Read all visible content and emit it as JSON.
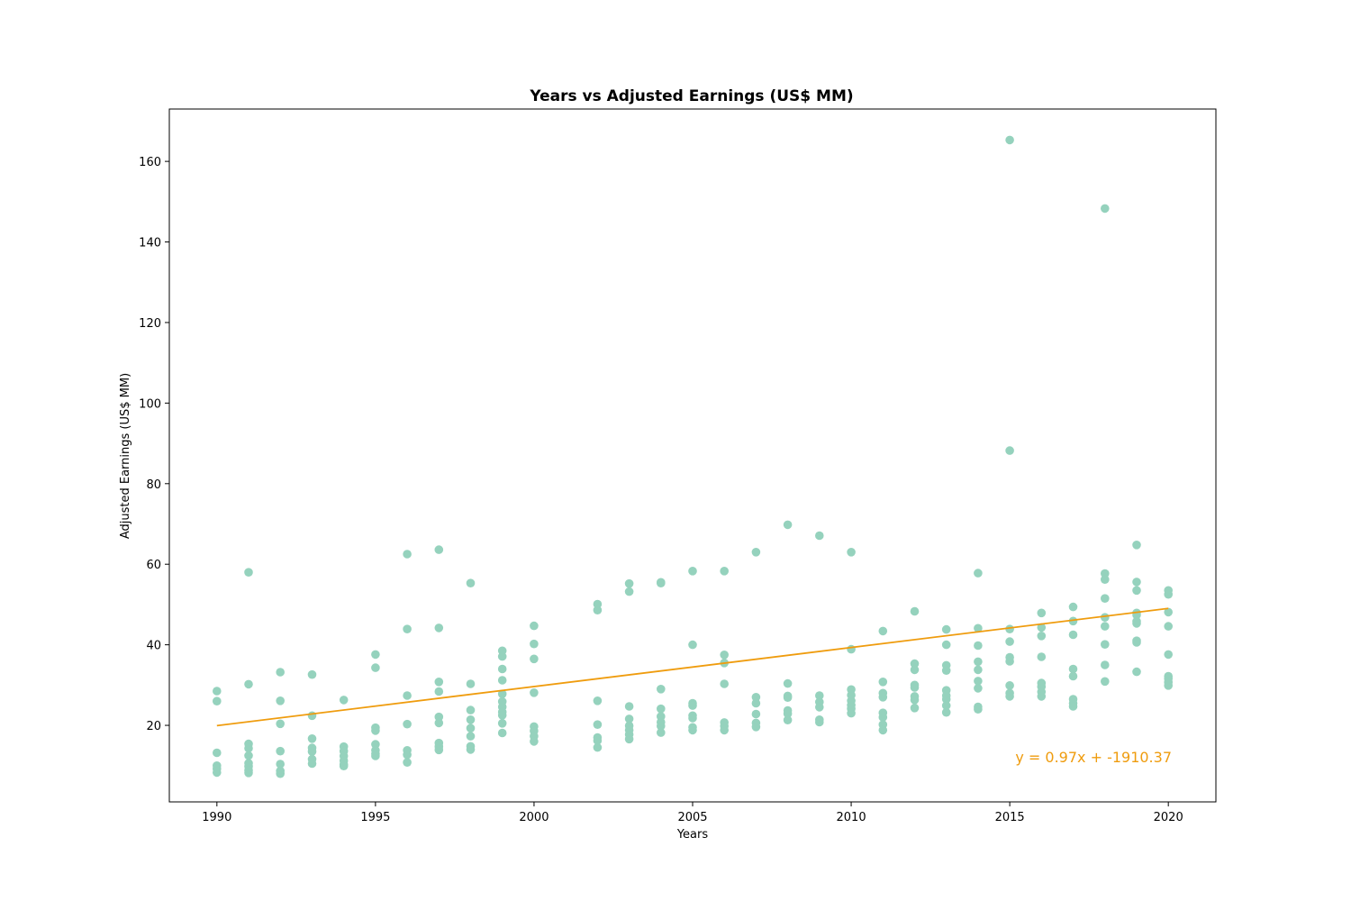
{
  "chart_data": {
    "type": "scatter",
    "title": "Years vs Adjusted Earnings (US$ MM)",
    "xlabel": "Years",
    "ylabel": "Adjusted Earnings (US$ MM)",
    "xlim": [
      1988.5,
      2021.5
    ],
    "ylim": [
      1,
      173
    ],
    "xticks": [
      1990,
      1995,
      2000,
      2005,
      2010,
      2015,
      2020
    ],
    "yticks": [
      20,
      40,
      60,
      80,
      100,
      120,
      140,
      160
    ],
    "grid": false,
    "colors": {
      "points": "#95d2bd",
      "trend": "#ef9c0e",
      "equation": "#ef9c0e"
    },
    "points": [
      [
        1990,
        28.5
      ],
      [
        1990,
        26.0
      ],
      [
        1990,
        13.2
      ],
      [
        1990,
        10.0
      ],
      [
        1990,
        9.2
      ],
      [
        1990,
        8.3
      ],
      [
        1991,
        58.0
      ],
      [
        1991,
        30.2
      ],
      [
        1991,
        15.4
      ],
      [
        1991,
        14.3
      ],
      [
        1991,
        12.5
      ],
      [
        1991,
        10.6
      ],
      [
        1991,
        9.8
      ],
      [
        1991,
        8.8
      ],
      [
        1991,
        8.2
      ],
      [
        1992,
        33.2
      ],
      [
        1992,
        26.1
      ],
      [
        1992,
        20.4
      ],
      [
        1992,
        13.6
      ],
      [
        1992,
        10.4
      ],
      [
        1992,
        8.7
      ],
      [
        1992,
        8.0
      ],
      [
        1993,
        32.6
      ],
      [
        1993,
        22.4
      ],
      [
        1993,
        16.7
      ],
      [
        1993,
        14.4
      ],
      [
        1993,
        13.5
      ],
      [
        1993,
        11.6
      ],
      [
        1993,
        10.5
      ],
      [
        1994,
        26.3
      ],
      [
        1994,
        14.7
      ],
      [
        1994,
        13.6
      ],
      [
        1994,
        12.4
      ],
      [
        1994,
        11.2
      ],
      [
        1994,
        10.3
      ],
      [
        1994,
        9.9
      ],
      [
        1995,
        37.6
      ],
      [
        1995,
        34.3
      ],
      [
        1995,
        19.4
      ],
      [
        1995,
        18.7
      ],
      [
        1995,
        15.3
      ],
      [
        1995,
        13.8
      ],
      [
        1995,
        12.9
      ],
      [
        1995,
        12.4
      ],
      [
        1996,
        62.5
      ],
      [
        1996,
        43.9
      ],
      [
        1996,
        27.4
      ],
      [
        1996,
        20.3
      ],
      [
        1996,
        13.8
      ],
      [
        1996,
        12.7
      ],
      [
        1996,
        10.8
      ],
      [
        1997,
        63.6
      ],
      [
        1997,
        44.2
      ],
      [
        1997,
        30.8
      ],
      [
        1997,
        28.4
      ],
      [
        1997,
        22.1
      ],
      [
        1997,
        20.6
      ],
      [
        1997,
        15.6
      ],
      [
        1997,
        14.7
      ],
      [
        1997,
        13.9
      ],
      [
        1998,
        55.3
      ],
      [
        1998,
        30.3
      ],
      [
        1998,
        23.8
      ],
      [
        1998,
        21.4
      ],
      [
        1998,
        19.3
      ],
      [
        1998,
        17.3
      ],
      [
        1998,
        14.8
      ],
      [
        1998,
        14.0
      ],
      [
        1999,
        38.5
      ],
      [
        1999,
        37.1
      ],
      [
        1999,
        34.0
      ],
      [
        1999,
        31.2
      ],
      [
        1999,
        27.8
      ],
      [
        1999,
        25.9
      ],
      [
        1999,
        24.6
      ],
      [
        1999,
        23.3
      ],
      [
        1999,
        22.5
      ],
      [
        1999,
        20.5
      ],
      [
        1999,
        18.1
      ],
      [
        2000,
        44.7
      ],
      [
        2000,
        40.2
      ],
      [
        2000,
        36.5
      ],
      [
        2000,
        28.1
      ],
      [
        2000,
        19.7
      ],
      [
        2000,
        18.6
      ],
      [
        2000,
        17.3
      ],
      [
        2000,
        16.0
      ],
      [
        2002,
        50.1
      ],
      [
        2002,
        48.6
      ],
      [
        2002,
        26.1
      ],
      [
        2002,
        20.2
      ],
      [
        2002,
        17.0
      ],
      [
        2002,
        16.2
      ],
      [
        2002,
        14.5
      ],
      [
        2003,
        55.2
      ],
      [
        2003,
        53.2
      ],
      [
        2003,
        24.7
      ],
      [
        2003,
        21.6
      ],
      [
        2003,
        19.9
      ],
      [
        2003,
        18.8
      ],
      [
        2003,
        17.7
      ],
      [
        2003,
        16.6
      ],
      [
        2004,
        55.5
      ],
      [
        2004,
        55.3
      ],
      [
        2004,
        29.0
      ],
      [
        2004,
        24.1
      ],
      [
        2004,
        22.2
      ],
      [
        2004,
        20.8
      ],
      [
        2004,
        19.8
      ],
      [
        2004,
        18.2
      ],
      [
        2005,
        58.3
      ],
      [
        2005,
        40.0
      ],
      [
        2005,
        25.5
      ],
      [
        2005,
        24.9
      ],
      [
        2005,
        22.4
      ],
      [
        2005,
        21.8
      ],
      [
        2005,
        19.5
      ],
      [
        2005,
        18.8
      ],
      [
        2006,
        58.3
      ],
      [
        2006,
        37.5
      ],
      [
        2006,
        35.5
      ],
      [
        2006,
        30.3
      ],
      [
        2006,
        20.7
      ],
      [
        2006,
        19.8
      ],
      [
        2006,
        18.8
      ],
      [
        2007,
        63.0
      ],
      [
        2007,
        27.0
      ],
      [
        2007,
        25.5
      ],
      [
        2007,
        22.8
      ],
      [
        2007,
        20.6
      ],
      [
        2007,
        19.6
      ],
      [
        2008,
        69.8
      ],
      [
        2008,
        30.4
      ],
      [
        2008,
        27.3
      ],
      [
        2008,
        26.9
      ],
      [
        2008,
        23.7
      ],
      [
        2008,
        22.9
      ],
      [
        2008,
        21.3
      ],
      [
        2009,
        67.1
      ],
      [
        2009,
        27.4
      ],
      [
        2009,
        25.8
      ],
      [
        2009,
        24.5
      ],
      [
        2009,
        21.4
      ],
      [
        2009,
        20.8
      ],
      [
        2010,
        63.0
      ],
      [
        2010,
        38.9
      ],
      [
        2010,
        28.9
      ],
      [
        2010,
        27.5
      ],
      [
        2010,
        26.1
      ],
      [
        2010,
        25.0
      ],
      [
        2010,
        24.1
      ],
      [
        2010,
        23.0
      ],
      [
        2011,
        43.4
      ],
      [
        2011,
        30.8
      ],
      [
        2011,
        28.0
      ],
      [
        2011,
        27.0
      ],
      [
        2011,
        23.1
      ],
      [
        2011,
        22.0
      ],
      [
        2011,
        20.2
      ],
      [
        2011,
        18.8
      ],
      [
        2012,
        48.3
      ],
      [
        2012,
        35.3
      ],
      [
        2012,
        33.8
      ],
      [
        2012,
        30.0
      ],
      [
        2012,
        29.4
      ],
      [
        2012,
        27.2
      ],
      [
        2012,
        26.3
      ],
      [
        2012,
        24.3
      ],
      [
        2013,
        43.8
      ],
      [
        2013,
        40.0
      ],
      [
        2013,
        34.9
      ],
      [
        2013,
        33.6
      ],
      [
        2013,
        28.7
      ],
      [
        2013,
        27.4
      ],
      [
        2013,
        26.5
      ],
      [
        2013,
        24.9
      ],
      [
        2013,
        23.2
      ],
      [
        2014,
        57.8
      ],
      [
        2014,
        44.1
      ],
      [
        2014,
        39.8
      ],
      [
        2014,
        35.8
      ],
      [
        2014,
        33.8
      ],
      [
        2014,
        31.0
      ],
      [
        2014,
        29.2
      ],
      [
        2014,
        24.6
      ],
      [
        2014,
        24.0
      ],
      [
        2015,
        165.3
      ],
      [
        2015,
        88.2
      ],
      [
        2015,
        43.9
      ],
      [
        2015,
        40.8
      ],
      [
        2015,
        36.9
      ],
      [
        2015,
        35.9
      ],
      [
        2015,
        29.9
      ],
      [
        2015,
        28.0
      ],
      [
        2015,
        27.2
      ],
      [
        2016,
        47.9
      ],
      [
        2016,
        44.3
      ],
      [
        2016,
        42.2
      ],
      [
        2016,
        37.0
      ],
      [
        2016,
        30.5
      ],
      [
        2016,
        29.6
      ],
      [
        2016,
        28.3
      ],
      [
        2016,
        27.2
      ],
      [
        2017,
        49.4
      ],
      [
        2017,
        45.9
      ],
      [
        2017,
        42.5
      ],
      [
        2017,
        34.0
      ],
      [
        2017,
        32.2
      ],
      [
        2017,
        26.5
      ],
      [
        2017,
        25.5
      ],
      [
        2017,
        24.7
      ],
      [
        2018,
        148.3
      ],
      [
        2018,
        57.7
      ],
      [
        2018,
        56.2
      ],
      [
        2018,
        51.5
      ],
      [
        2018,
        46.8
      ],
      [
        2018,
        44.6
      ],
      [
        2018,
        40.1
      ],
      [
        2018,
        35.0
      ],
      [
        2018,
        30.9
      ],
      [
        2019,
        64.8
      ],
      [
        2019,
        55.6
      ],
      [
        2019,
        53.5
      ],
      [
        2019,
        47.9
      ],
      [
        2019,
        47.4
      ],
      [
        2019,
        45.8
      ],
      [
        2019,
        45.3
      ],
      [
        2019,
        41.0
      ],
      [
        2019,
        40.6
      ],
      [
        2019,
        33.3
      ],
      [
        2020,
        53.5
      ],
      [
        2020,
        52.5
      ],
      [
        2020,
        48.1
      ],
      [
        2020,
        44.6
      ],
      [
        2020,
        37.6
      ],
      [
        2020,
        32.2
      ],
      [
        2020,
        31.6
      ],
      [
        2020,
        30.7
      ],
      [
        2020,
        29.9
      ]
    ],
    "trendline": {
      "slope": 0.97,
      "intercept": -1910.37,
      "x_start": 1990,
      "x_end": 2020,
      "label": "y = 0.97x + -1910.37"
    }
  }
}
